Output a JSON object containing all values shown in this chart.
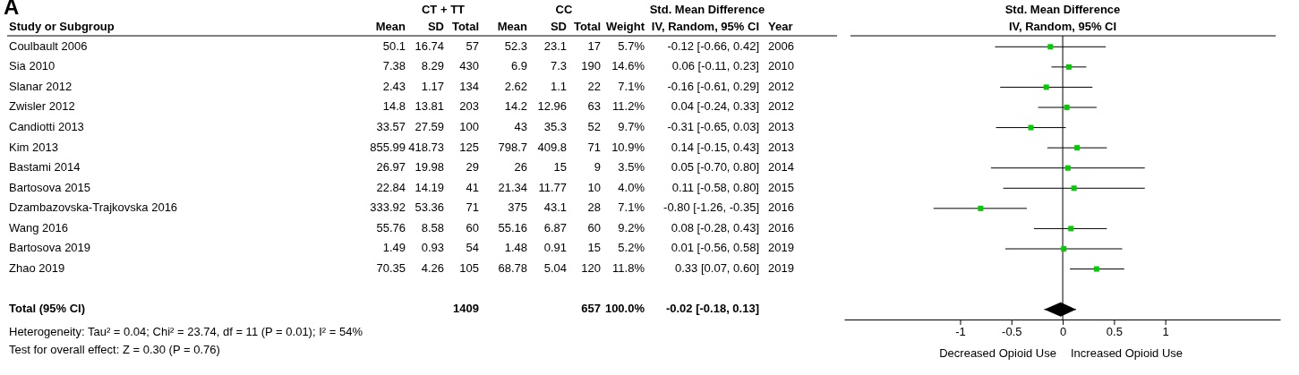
{
  "chart_data": [
    {
      "type": "other",
      "title": "A",
      "annotations": [
        "CT + TT",
        "CC",
        "Std. Mean Difference",
        "Study or Subgroup",
        "Mean",
        "SD",
        "Total",
        "Mean",
        "SD",
        "Total",
        "Weight",
        "IV, Random, 95% CI",
        "Year",
        "Coulbault 2006",
        "50.1",
        "16.74",
        "57",
        "52.3",
        "23.1",
        "17",
        "5.7%",
        "-0.12 [-0.66, 0.42]",
        "2006",
        "Sia 2010",
        "7.38",
        "8.29",
        "430",
        "6.9",
        "7.3",
        "190",
        "14.6%",
        "0.06 [-0.11, 0.23]",
        "2010",
        "Slanar 2012",
        "2.43",
        "1.17",
        "134",
        "2.62",
        "1.1",
        "22",
        "7.1%",
        "-0.16 [-0.61, 0.29]",
        "2012",
        "Zwisler 2012",
        "14.8",
        "13.81",
        "203",
        "14.2",
        "12.96",
        "63",
        "11.2%",
        "0.04 [-0.24, 0.33]",
        "2012",
        "Candiotti 2013",
        "33.57",
        "27.59",
        "100",
        "43",
        "35.3",
        "52",
        "9.7%",
        "-0.31 [-0.65, 0.03]",
        "2013",
        "Kim 2013",
        "855.99",
        "418.73",
        "125",
        "798.7",
        "409.8",
        "71",
        "10.9%",
        "0.14 [-0.15, 0.43]",
        "2013",
        "Bastami 2014",
        "26.97",
        "19.98",
        "29",
        "26",
        "15",
        "9",
        "3.5%",
        "0.05 [-0.70, 0.80]",
        "2014",
        "Bartosova 2015",
        "22.84",
        "14.19",
        "41",
        "21.34",
        "11.77",
        "10",
        "4.0%",
        "0.11 [-0.58, 0.80]",
        "2015",
        "Dzambazovska-Trajkovska 2016",
        "333.92",
        "53.36",
        "71",
        "375",
        "43.1",
        "28",
        "7.1%",
        "-0.80 [-1.26, -0.35]",
        "2016",
        "Wang 2016",
        "55.76",
        "8.58",
        "60",
        "55.16",
        "6.87",
        "60",
        "9.2%",
        "0.08 [-0.28, 0.43]",
        "2016",
        "Bartosova 2019",
        "1.49",
        "0.93",
        "54",
        "1.48",
        "0.91",
        "15",
        "5.2%",
        "0.01 [-0.56, 0.58]",
        "2019",
        "Zhao 2019",
        "70.35",
        "4.26",
        "105",
        "68.78",
        "5.04",
        "120",
        "11.8%",
        "0.33 [0.07, 0.60]",
        "2019",
        "Total (95% CI)",
        "1409",
        "657",
        "100.0%",
        "-0.02 [-0.18, 0.13]",
        "Heterogeneity: Tau² = 0.04; Chi² = 23.74, df = 11 (P = 0.01); I² = 54%",
        "Test for overall effect: Z = 0.30 (P = 0.76)"
      ]
    },
    {
      "type": "scatter",
      "title": "Std. Mean Difference",
      "subtitle": "IV, Random, 95% CI",
      "categories": [
        null,
        null,
        null,
        null,
        null,
        null,
        null,
        null,
        null,
        null,
        null,
        null,
        null,
        null
      ],
      "tick_labels": "x",
      "orientation": "horizontal",
      "xlim": [
        -2.13,
        2.12
      ],
      "xticks": [
        -1,
        -0.5,
        0,
        0.5,
        1
      ],
      "ref_lines": [
        {
          "axis": "x",
          "value": 0,
          "color": "#000000"
        }
      ],
      "annotations": [
        "Decreased Opioid Use",
        "Increased Opioid Use"
      ],
      "series": [
        {
          "marker": "square",
          "color": "#000000",
          "colors": [
            "#00cc00",
            "#00cc00",
            "#00cc00",
            "#00cc00",
            "#00cc00",
            "#00cc00",
            "#00cc00",
            "#00cc00",
            "#00cc00",
            "#00cc00",
            "#00cc00",
            "#00cc00",
            null,
            null
          ],
          "values": [
            -0.12,
            0.06,
            -0.16,
            0.04,
            -0.31,
            0.14,
            0.05,
            0.11,
            -0.8,
            0.08,
            0.01,
            0.33,
            null,
            null
          ],
          "errors": [
            [
              -0.66,
              0.42
            ],
            [
              -0.11,
              0.23
            ],
            [
              -0.61,
              0.29
            ],
            [
              -0.24,
              0.33
            ],
            [
              -0.65,
              0.03
            ],
            [
              -0.15,
              0.43
            ],
            [
              -0.7,
              0.8
            ],
            [
              -0.58,
              0.8
            ],
            [
              -1.26,
              -0.35
            ],
            [
              -0.28,
              0.43
            ],
            [
              -0.56,
              0.58
            ],
            [
              0.07,
              0.6
            ],
            null,
            null
          ]
        },
        {
          "marker": "diamond",
          "color": "#000000",
          "values": [
            null,
            null,
            null,
            null,
            null,
            null,
            null,
            null,
            null,
            null,
            null,
            null,
            null,
            -0.02
          ],
          "errors": [
            null,
            null,
            null,
            null,
            null,
            null,
            null,
            null,
            null,
            null,
            null,
            null,
            null,
            [
              -0.18,
              0.13
            ]
          ]
        }
      ]
    }
  ]
}
